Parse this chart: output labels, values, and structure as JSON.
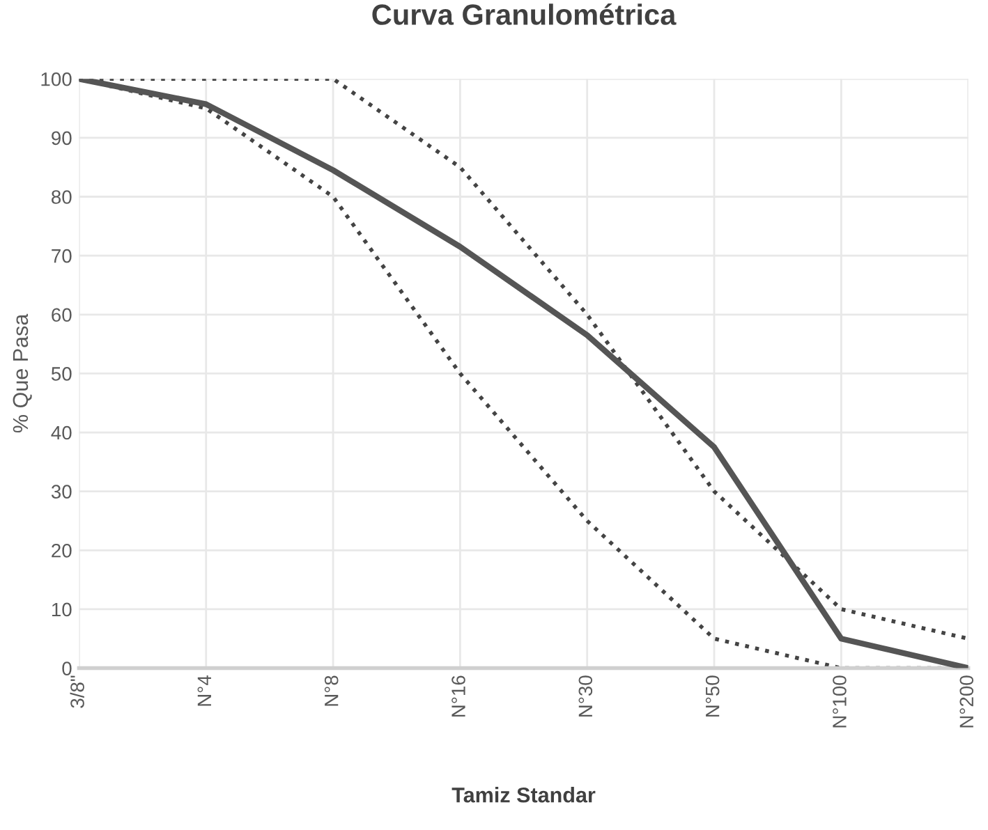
{
  "chart_data": {
    "type": "line",
    "title": "Curva Granulométrica",
    "xlabel": "Tamiz Standar",
    "ylabel": "% Que Pasa",
    "categories": [
      "3/8\"",
      "N°4",
      "N°8",
      "N°16",
      "N°30",
      "N°50",
      "N°100",
      "N°200"
    ],
    "series": [
      {
        "color": "#555555",
        "line_style": "solid",
        "values": [
          100,
          95.7,
          84.5,
          71.5,
          56.5,
          37.5,
          5,
          0
        ]
      },
      {
        "color": "#444444",
        "line_style": "dotted",
        "values": [
          100,
          100,
          100,
          85,
          60,
          30,
          10,
          5
        ]
      },
      {
        "color": "#444444",
        "line_style": "dotted",
        "values": [
          100,
          95,
          80,
          50,
          25,
          5,
          0,
          0
        ]
      }
    ],
    "ylim": [
      0,
      100
    ],
    "yticks": [
      0,
      10,
      20,
      30,
      40,
      50,
      60,
      70,
      80,
      90,
      100
    ],
    "grid": true,
    "legend": false,
    "marker": "none"
  }
}
